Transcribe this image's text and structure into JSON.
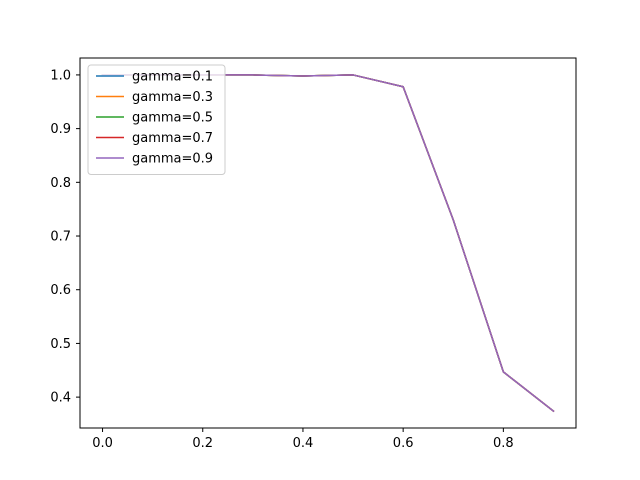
{
  "chart_data": {
    "type": "line",
    "title": "",
    "xlabel": "",
    "ylabel": "",
    "xlim": [
      -0.045,
      0.945
    ],
    "ylim": [
      0.3425,
      1.0315
    ],
    "xticks": [
      0.0,
      0.2,
      0.4,
      0.6,
      0.8
    ],
    "xtick_labels": [
      "0.0",
      "0.2",
      "0.4",
      "0.6",
      "0.8"
    ],
    "yticks": [
      0.4,
      0.5,
      0.6,
      0.7,
      0.8,
      0.9,
      1.0
    ],
    "ytick_labels": [
      "0.4",
      "0.5",
      "0.6",
      "0.7",
      "0.8",
      "0.9",
      "1.0"
    ],
    "grid": false,
    "legend_position": "upper left",
    "x": [
      0.0,
      0.1,
      0.2,
      0.3,
      0.4,
      0.5,
      0.6,
      0.7,
      0.8,
      0.9
    ],
    "series": [
      {
        "name": "gamma=0.1",
        "color": "#1f77b4",
        "values": [
          1.0,
          1.0,
          1.0,
          1.0,
          0.998,
          1.0,
          0.978,
          0.73,
          0.447,
          0.374
        ]
      },
      {
        "name": "gamma=0.3",
        "color": "#ff7f0e",
        "values": [
          1.0,
          1.0,
          1.0,
          1.0,
          0.998,
          1.0,
          0.978,
          0.73,
          0.447,
          0.374
        ]
      },
      {
        "name": "gamma=0.5",
        "color": "#2ca02c",
        "values": [
          1.0,
          1.0,
          1.0,
          1.0,
          0.998,
          1.0,
          0.978,
          0.73,
          0.447,
          0.374
        ]
      },
      {
        "name": "gamma=0.7",
        "color": "#d62728",
        "values": [
          1.0,
          1.0,
          1.0,
          1.0,
          0.998,
          1.0,
          0.978,
          0.73,
          0.447,
          0.374
        ]
      },
      {
        "name": "gamma=0.9",
        "color": "#9467bd",
        "values": [
          1.0,
          1.0,
          1.0,
          1.0,
          0.998,
          1.0,
          0.978,
          0.73,
          0.447,
          0.374
        ]
      }
    ]
  }
}
